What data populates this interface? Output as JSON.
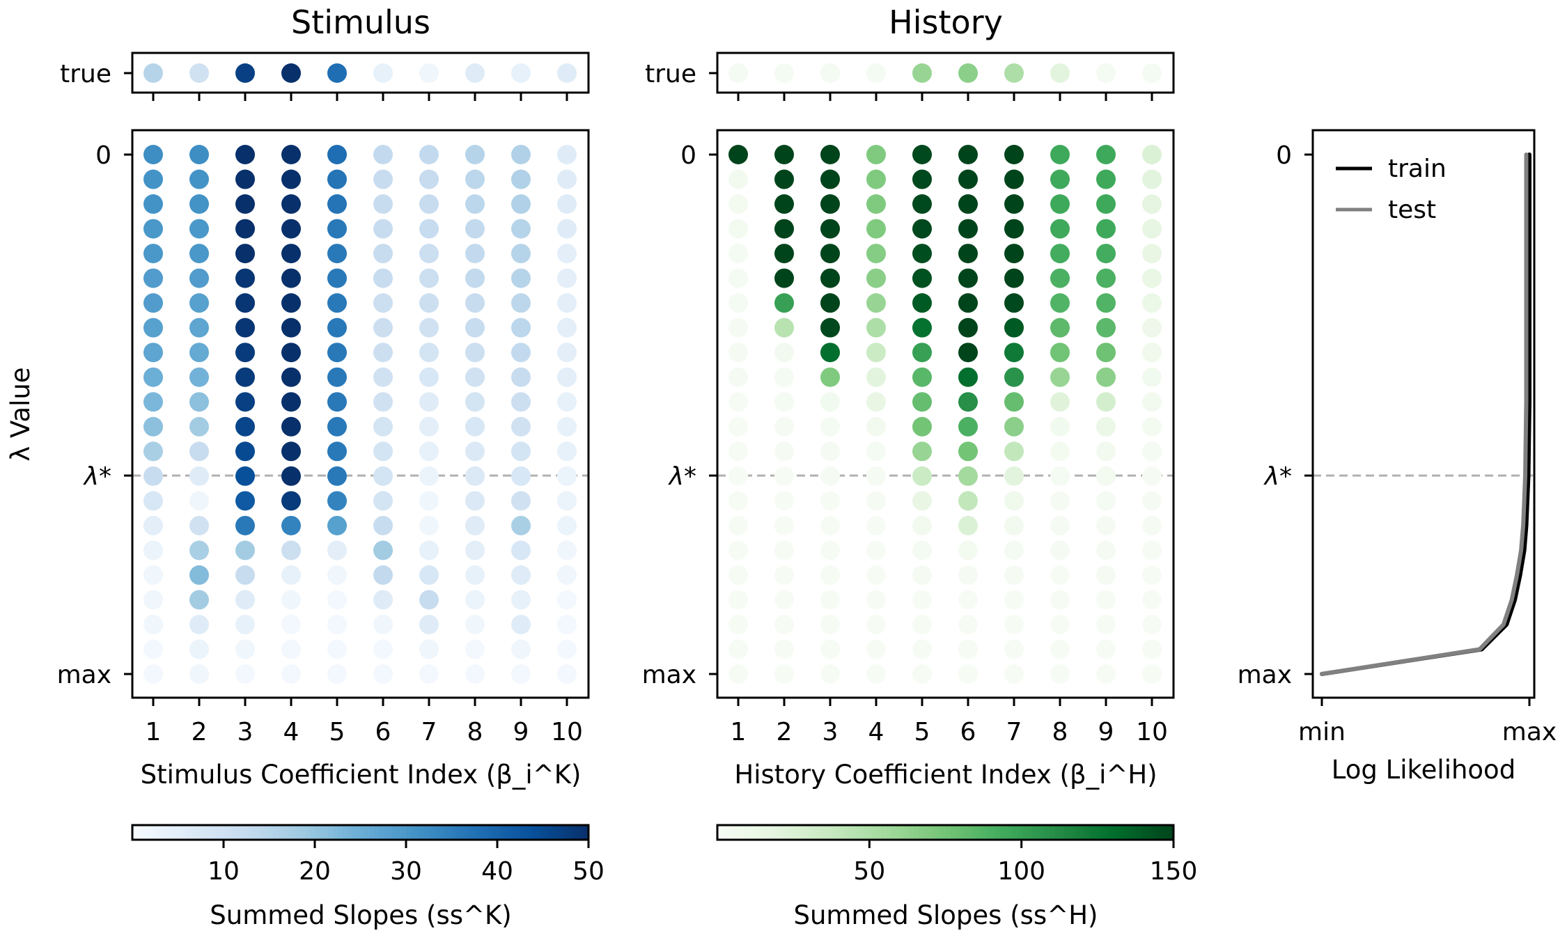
{
  "chart_data": [
    {
      "type": "scatter",
      "title": "Stimulus",
      "xlabel": "Stimulus Coefficient Index (β_i^K)",
      "ylabel": "λ Value",
      "x_ticks": [
        "1",
        "2",
        "3",
        "4",
        "5",
        "6",
        "7",
        "8",
        "9",
        "10"
      ],
      "y_ticks": {
        "top": "0",
        "lambda_star": "λ*",
        "bottom": "max"
      },
      "true_row_label": "true",
      "true_values": [
        15,
        10,
        47,
        50,
        38,
        4,
        2,
        6,
        4,
        6
      ],
      "colormap": "Blues",
      "colorbar": {
        "label": "Summed Slopes (ss^K)",
        "ticks": [
          "10",
          "20",
          "30",
          "40",
          "50"
        ],
        "min": 0,
        "max": 50
      },
      "grid": false,
      "lambda_star_row": 13,
      "n_rows": 22,
      "matrix": [
        [
          32,
          32,
          50,
          50,
          38,
          13,
          13,
          15,
          16,
          6
        ],
        [
          31,
          31,
          50,
          50,
          37,
          12,
          12,
          14,
          16,
          6
        ],
        [
          31,
          31,
          50,
          50,
          37,
          12,
          12,
          14,
          16,
          6
        ],
        [
          30,
          30,
          50,
          50,
          36,
          12,
          12,
          13,
          15,
          6
        ],
        [
          30,
          30,
          50,
          50,
          36,
          12,
          11,
          13,
          15,
          5
        ],
        [
          29,
          29,
          49,
          50,
          36,
          12,
          11,
          13,
          15,
          5
        ],
        [
          29,
          28,
          49,
          50,
          36,
          11,
          11,
          12,
          14,
          5
        ],
        [
          28,
          27,
          49,
          50,
          36,
          11,
          10,
          12,
          14,
          5
        ],
        [
          27,
          26,
          48,
          50,
          36,
          11,
          9,
          11,
          13,
          5
        ],
        [
          25,
          24,
          48,
          50,
          36,
          10,
          8,
          10,
          12,
          5
        ],
        [
          23,
          21,
          47,
          50,
          36,
          10,
          6,
          9,
          11,
          4
        ],
        [
          21,
          18,
          46,
          50,
          36,
          9,
          5,
          8,
          10,
          4
        ],
        [
          17,
          12,
          45,
          50,
          36,
          9,
          4,
          7,
          9,
          4
        ],
        [
          12,
          6,
          44,
          50,
          36,
          9,
          3,
          7,
          8,
          3
        ],
        [
          8,
          2,
          42,
          48,
          34,
          9,
          2,
          7,
          10,
          3
        ],
        [
          5,
          10,
          36,
          34,
          28,
          12,
          2,
          6,
          17,
          3
        ],
        [
          3,
          17,
          18,
          11,
          5,
          18,
          4,
          5,
          8,
          2
        ],
        [
          2,
          22,
          12,
          4,
          2,
          13,
          8,
          4,
          6,
          2
        ],
        [
          2,
          18,
          6,
          2,
          1,
          6,
          12,
          3,
          4,
          1
        ],
        [
          2,
          6,
          4,
          1,
          1,
          2,
          6,
          2,
          6,
          1
        ],
        [
          1,
          3,
          2,
          1,
          1,
          1,
          2,
          1,
          2,
          1
        ],
        [
          1,
          2,
          1,
          1,
          1,
          1,
          1,
          1,
          1,
          1
        ]
      ]
    },
    {
      "type": "scatter",
      "title": "History",
      "xlabel": "History Coefficient Index (β_i^H)",
      "ylabel": "",
      "x_ticks": [
        "1",
        "2",
        "3",
        "4",
        "5",
        "6",
        "7",
        "8",
        "9",
        "10"
      ],
      "y_ticks": {
        "top": "0",
        "lambda_star": "λ*",
        "bottom": "max"
      },
      "true_row_label": "true",
      "true_values": [
        3,
        3,
        3,
        3,
        60,
        65,
        50,
        20,
        3,
        3
      ],
      "colormap": "Greens",
      "colorbar": {
        "label": "Summed Slopes (ss^H)",
        "ticks": [
          "50",
          "100",
          "150"
        ],
        "min": 0,
        "max": 150
      },
      "grid": false,
      "lambda_star_row": 13,
      "n_rows": 22,
      "matrix": [
        [
          150,
          150,
          150,
          70,
          148,
          150,
          150,
          95,
          95,
          25
        ],
        [
          5,
          150,
          150,
          70,
          148,
          150,
          150,
          95,
          95,
          20
        ],
        [
          4,
          150,
          150,
          70,
          148,
          150,
          150,
          95,
          95,
          18
        ],
        [
          4,
          150,
          150,
          70,
          148,
          150,
          150,
          95,
          95,
          17
        ],
        [
          3,
          150,
          150,
          68,
          146,
          150,
          150,
          93,
          93,
          15
        ],
        [
          3,
          150,
          150,
          66,
          144,
          150,
          150,
          90,
          90,
          14
        ],
        [
          3,
          100,
          150,
          60,
          140,
          150,
          148,
          88,
          88,
          12
        ],
        [
          2,
          45,
          148,
          50,
          128,
          150,
          140,
          83,
          84,
          10
        ],
        [
          2,
          5,
          130,
          35,
          100,
          150,
          123,
          76,
          77,
          8
        ],
        [
          2,
          3,
          70,
          20,
          85,
          130,
          108,
          60,
          65,
          6
        ],
        [
          1,
          3,
          6,
          15,
          80,
          110,
          80,
          22,
          30,
          5
        ],
        [
          1,
          2,
          3,
          5,
          75,
          90,
          65,
          6,
          12,
          4
        ],
        [
          1,
          2,
          2,
          3,
          60,
          75,
          40,
          4,
          5,
          3
        ],
        [
          1,
          1,
          2,
          2,
          35,
          55,
          20,
          3,
          4,
          2
        ],
        [
          1,
          1,
          1,
          2,
          15,
          40,
          8,
          2,
          3,
          2
        ],
        [
          1,
          1,
          1,
          1,
          5,
          25,
          5,
          2,
          2,
          2
        ],
        [
          1,
          1,
          1,
          1,
          3,
          4,
          3,
          2,
          2,
          1
        ],
        [
          1,
          1,
          1,
          1,
          2,
          2,
          2,
          1,
          2,
          1
        ],
        [
          1,
          1,
          1,
          1,
          1,
          1,
          1,
          1,
          1,
          1
        ],
        [
          1,
          1,
          1,
          1,
          1,
          1,
          1,
          1,
          1,
          1
        ],
        [
          1,
          1,
          1,
          1,
          1,
          1,
          1,
          1,
          1,
          1
        ],
        [
          1,
          1,
          1,
          1,
          1,
          1,
          1,
          1,
          1,
          1
        ]
      ]
    },
    {
      "type": "line",
      "xlabel": "Log Likelihood",
      "x_ticks": [
        "min",
        "max"
      ],
      "y_ticks": {
        "top": "0",
        "lambda_star": "λ*",
        "bottom": "max"
      },
      "legend_placement": "top-left",
      "xlim": [
        0,
        1
      ],
      "ylim_rows": [
        0,
        21
      ],
      "series": [
        {
          "name": "train",
          "color": "#000000",
          "points": [
            [
              1.0,
              0
            ],
            [
              1.0,
              5
            ],
            [
              1.0,
              10
            ],
            [
              0.995,
              13
            ],
            [
              0.99,
              14
            ],
            [
              0.985,
              15
            ],
            [
              0.975,
              16
            ],
            [
              0.955,
              17
            ],
            [
              0.93,
              18
            ],
            [
              0.89,
              19
            ],
            [
              0.77,
              20
            ],
            [
              0.0,
              21
            ]
          ]
        },
        {
          "name": "test",
          "color": "#808080",
          "points": [
            [
              0.985,
              0
            ],
            [
              0.985,
              5
            ],
            [
              0.985,
              10
            ],
            [
              0.98,
              13
            ],
            [
              0.975,
              14
            ],
            [
              0.97,
              15
            ],
            [
              0.96,
              16
            ],
            [
              0.94,
              17
            ],
            [
              0.915,
              18
            ],
            [
              0.875,
              19
            ],
            [
              0.76,
              20
            ],
            [
              0.0,
              21
            ]
          ]
        }
      ]
    }
  ]
}
